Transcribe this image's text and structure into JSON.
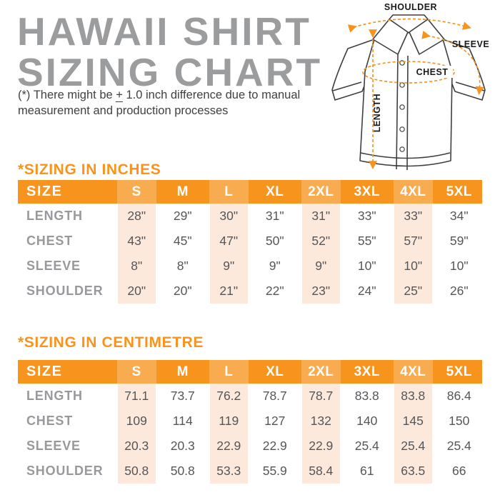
{
  "page": {
    "title_line1": "HAWAII SHIRT",
    "title_line2": "SIZING CHART",
    "note_prefix": "(*) There might be ",
    "note_symbol": "+",
    "note_rest": " 1.0 inch difference due to manual measurement and production processes"
  },
  "diagram": {
    "shoulder_label": "SHOULDER",
    "sleeve_label": "SLEEVE",
    "chest_label": "CHEST",
    "length_label": "LENGTH"
  },
  "colors": {
    "accent_orange": "#f7941e",
    "header_highlight_orange": "#f9a64b",
    "column_highlight_peach": "#fce9db",
    "title_gray": "#9b9c9e",
    "row_label_gray": "#97999c",
    "value_gray": "#55565a",
    "note_text": "#414042"
  },
  "chart_data": [
    {
      "type": "table",
      "title": "*SIZING IN INCHES",
      "columns": [
        "SIZE",
        "S",
        "M",
        "L",
        "XL",
        "2XL",
        "3XL",
        "4XL",
        "5XL"
      ],
      "highlighted_columns": [
        "S",
        "L",
        "2XL",
        "4XL"
      ],
      "rows": [
        {
          "label": "LENGTH",
          "values": [
            "28\"",
            "29\"",
            "30\"",
            "31\"",
            "31\"",
            "33\"",
            "33\"",
            "34\""
          ]
        },
        {
          "label": "CHEST",
          "values": [
            "43\"",
            "45\"",
            "47\"",
            "50\"",
            "52\"",
            "55\"",
            "57\"",
            "59\""
          ]
        },
        {
          "label": "SLEEVE",
          "values": [
            "8\"",
            "8\"",
            "9\"",
            "9\"",
            "9\"",
            "10\"",
            "10\"",
            "10\""
          ]
        },
        {
          "label": "SHOULDER",
          "values": [
            "20\"",
            "20\"",
            "21\"",
            "22\"",
            "23\"",
            "24\"",
            "25\"",
            "26\""
          ]
        }
      ]
    },
    {
      "type": "table",
      "title": "*SIZING IN CENTIMETRE",
      "columns": [
        "SIZE",
        "S",
        "M",
        "L",
        "XL",
        "2XL",
        "3XL",
        "4XL",
        "5XL"
      ],
      "highlighted_columns": [
        "S",
        "L",
        "2XL",
        "4XL"
      ],
      "rows": [
        {
          "label": "LENGTH",
          "values": [
            "71.1",
            "73.7",
            "76.2",
            "78.7",
            "78.7",
            "83.8",
            "83.8",
            "86.4"
          ]
        },
        {
          "label": "CHEST",
          "values": [
            "109",
            "114",
            "119",
            "127",
            "132",
            "140",
            "145",
            "150"
          ]
        },
        {
          "label": "SLEEVE",
          "values": [
            "20.3",
            "20.3",
            "22.9",
            "22.9",
            "22.9",
            "25.4",
            "25.4",
            "25.4"
          ]
        },
        {
          "label": "SHOULDER",
          "values": [
            "50.8",
            "50.8",
            "53.3",
            "55.9",
            "58.4",
            "61",
            "63.5",
            "66"
          ]
        }
      ]
    }
  ]
}
